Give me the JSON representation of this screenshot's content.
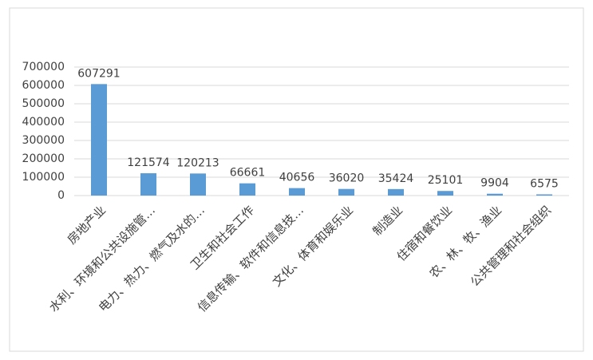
{
  "chart_data": {
    "type": "bar",
    "categories": [
      "房地产业",
      "水利、环境和公共设施管…",
      "电力、热力、燃气及水的…",
      "卫生和社会工作",
      "信息传输、软件和信息技…",
      "文化、体育和娱乐业",
      "制造业",
      "住宿和餐饮业",
      "农、林、牧、渔业",
      "公共管理和社会组织"
    ],
    "values": [
      607291,
      121574,
      120213,
      66661,
      40656,
      36020,
      35424,
      25101,
      9904,
      6575
    ],
    "color": "#5b9bd5",
    "ylim": [
      0,
      700000
    ],
    "yticks": [
      0,
      100000,
      200000,
      300000,
      400000,
      500000,
      600000,
      700000
    ],
    "grid": true
  }
}
